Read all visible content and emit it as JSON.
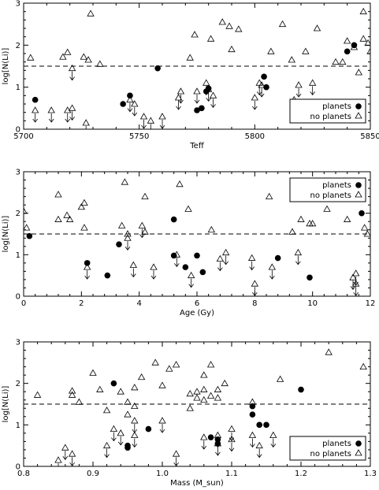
{
  "chart_data": [
    {
      "type": "scatter",
      "xlabel": "Teff",
      "ylabel": "log[N(Li)]",
      "xlim": [
        5700,
        5850
      ],
      "ylim": [
        0,
        3
      ],
      "xticks": [
        "5700",
        "5750",
        "5800",
        "5850"
      ],
      "yticks": [
        "0",
        "1",
        "2",
        "3"
      ],
      "reference_line_y": 1.5,
      "legend": {
        "position": "bottom-right",
        "entries": [
          "planets",
          "no planets"
        ]
      },
      "series": [
        {
          "name": "planets",
          "marker": "filled-circle",
          "points": [
            [
              5705,
              0.7
            ],
            [
              5743,
              0.6
            ],
            [
              5746,
              0.8
            ],
            [
              5758,
              1.45
            ],
            [
              5775,
              0.45
            ],
            [
              5777,
              0.5
            ],
            [
              5779,
              0.9
            ],
            [
              5780,
              0.97
            ],
            [
              5804,
              1.25
            ],
            [
              5805,
              1.0
            ],
            [
              5840,
              1.85
            ],
            [
              5843,
              2.0
            ]
          ]
        },
        {
          "name": "no planets",
          "marker": "open-triangle",
          "points": [
            [
              5703,
              1.7
            ],
            [
              5705,
              0.45
            ],
            [
              5712,
              0.45
            ],
            [
              5717,
              1.72
            ],
            [
              5719,
              1.83
            ],
            [
              5719,
              0.45
            ],
            [
              5721,
              1.45
            ],
            [
              5721,
              0.5
            ],
            [
              5726,
              1.72
            ],
            [
              5727,
              0.15
            ],
            [
              5728,
              1.65
            ],
            [
              5729,
              2.75
            ],
            [
              5733,
              1.55
            ],
            [
              5746,
              0.7
            ],
            [
              5748,
              0.6
            ],
            [
              5752,
              0.3
            ],
            [
              5755,
              0.2
            ],
            [
              5760,
              0.3
            ],
            [
              5767,
              0.75
            ],
            [
              5768,
              0.9
            ],
            [
              5772,
              1.7
            ],
            [
              5774,
              2.25
            ],
            [
              5775,
              0.9
            ],
            [
              5779,
              1.1
            ],
            [
              5780,
              0.95
            ],
            [
              5781,
              2.15
            ],
            [
              5782,
              0.8
            ],
            [
              5786,
              2.55
            ],
            [
              5789,
              2.45
            ],
            [
              5790,
              1.9
            ],
            [
              5793,
              2.38
            ],
            [
              5800,
              0.75
            ],
            [
              5802,
              1.1
            ],
            [
              5803,
              1.05
            ],
            [
              5807,
              1.85
            ],
            [
              5812,
              2.5
            ],
            [
              5816,
              1.65
            ],
            [
              5817,
              0.7
            ],
            [
              5819,
              1.05
            ],
            [
              5822,
              1.85
            ],
            [
              5825,
              1.1
            ],
            [
              5827,
              2.4
            ],
            [
              5835,
              1.6
            ],
            [
              5838,
              1.6
            ],
            [
              5840,
              2.1
            ],
            [
              5843,
              1.95
            ],
            [
              5845,
              1.35
            ],
            [
              5847,
              2.15
            ],
            [
              5847,
              2.8
            ],
            [
              5849,
              2.05
            ],
            [
              5850,
              1.85
            ]
          ],
          "upper_limits": [
            [
              5705,
              0.45
            ],
            [
              5712,
              0.45
            ],
            [
              5719,
              0.45
            ],
            [
              5721,
              1.45
            ],
            [
              5721,
              0.5
            ],
            [
              5727,
              0.15
            ],
            [
              5746,
              0.7
            ],
            [
              5748,
              0.6
            ],
            [
              5752,
              0.3
            ],
            [
              5755,
              0.2
            ],
            [
              5760,
              0.3
            ],
            [
              5767,
              0.75
            ],
            [
              5768,
              0.9
            ],
            [
              5775,
              0.9
            ],
            [
              5779,
              1.1
            ],
            [
              5780,
              0.95
            ],
            [
              5782,
              0.8
            ],
            [
              5800,
              0.75
            ],
            [
              5802,
              1.1
            ],
            [
              5803,
              1.05
            ],
            [
              5817,
              0.7
            ],
            [
              5819,
              1.05
            ],
            [
              5825,
              1.1
            ]
          ]
        }
      ]
    },
    {
      "type": "scatter",
      "xlabel": "Age (Gy)",
      "ylabel": "log[N(Li)]",
      "xlim": [
        0,
        12
      ],
      "ylim": [
        0,
        3
      ],
      "xticks": [
        "0",
        "2",
        "4",
        "6",
        "8",
        "10",
        "12"
      ],
      "yticks": [
        "0",
        "1",
        "2",
        "3"
      ],
      "reference_line_y": 1.5,
      "legend": {
        "position": "top-right",
        "entries": [
          "planets",
          "no planets"
        ]
      },
      "series": [
        {
          "name": "planets",
          "marker": "filled-circle",
          "points": [
            [
              0.2,
              1.45
            ],
            [
              2.2,
              0.8
            ],
            [
              2.9,
              0.5
            ],
            [
              3.3,
              1.25
            ],
            [
              5.2,
              1.85
            ],
            [
              5.2,
              0.98
            ],
            [
              5.6,
              0.7
            ],
            [
              6.0,
              0.98
            ],
            [
              6.2,
              0.58
            ],
            [
              8.8,
              0.92
            ],
            [
              9.9,
              0.45
            ],
            [
              11.7,
              2.0
            ]
          ]
        },
        {
          "name": "no planets",
          "marker": "open-triangle",
          "points": [
            [
              0.0,
              2.05
            ],
            [
              0.1,
              1.65
            ],
            [
              1.2,
              2.45
            ],
            [
              1.2,
              1.85
            ],
            [
              1.5,
              1.95
            ],
            [
              1.6,
              1.85
            ],
            [
              2.0,
              2.15
            ],
            [
              2.1,
              1.65
            ],
            [
              2.1,
              2.25
            ],
            [
              2.2,
              0.7
            ],
            [
              3.4,
              1.7
            ],
            [
              3.5,
              2.75
            ],
            [
              3.6,
              1.4
            ],
            [
              3.6,
              1.5
            ],
            [
              3.8,
              0.75
            ],
            [
              4.1,
              1.7
            ],
            [
              4.2,
              1.55
            ],
            [
              4.2,
              2.4
            ],
            [
              4.5,
              0.7
            ],
            [
              5.3,
              1.0
            ],
            [
              5.4,
              2.7
            ],
            [
              5.7,
              2.1
            ],
            [
              5.8,
              0.5
            ],
            [
              6.5,
              1.6
            ],
            [
              6.8,
              0.9
            ],
            [
              7.0,
              1.05
            ],
            [
              7.9,
              0.92
            ],
            [
              8.0,
              0.3
            ],
            [
              8.5,
              2.4
            ],
            [
              8.6,
              0.7
            ],
            [
              9.3,
              1.55
            ],
            [
              9.5,
              1.05
            ],
            [
              9.6,
              1.85
            ],
            [
              9.8,
              2.45
            ],
            [
              9.9,
              1.75
            ],
            [
              10.0,
              1.75
            ],
            [
              10.5,
              2.1
            ],
            [
              11.2,
              1.85
            ],
            [
              11.4,
              0.45
            ],
            [
              11.5,
              0.55
            ],
            [
              11.5,
              0.3
            ],
            [
              11.8,
              1.65
            ],
            [
              11.9,
              1.5
            ]
          ],
          "upper_limits": [
            [
              2.2,
              0.7
            ],
            [
              3.6,
              1.4
            ],
            [
              3.8,
              0.75
            ],
            [
              4.1,
              1.7
            ],
            [
              4.5,
              0.7
            ],
            [
              5.3,
              1.0
            ],
            [
              5.8,
              0.5
            ],
            [
              6.8,
              0.9
            ],
            [
              7.0,
              1.05
            ],
            [
              7.9,
              0.92
            ],
            [
              8.0,
              0.3
            ],
            [
              8.6,
              0.7
            ],
            [
              9.5,
              1.05
            ],
            [
              11.4,
              0.45
            ],
            [
              11.5,
              0.55
            ],
            [
              11.5,
              0.3
            ]
          ]
        }
      ]
    },
    {
      "type": "scatter",
      "xlabel": "Mass (M_sun)",
      "ylabel": "log[N(Li)]",
      "xlim": [
        0.8,
        1.3
      ],
      "ylim": [
        0,
        3
      ],
      "xticks": [
        "0.8",
        "0.9",
        "1.0",
        "1.1",
        "1.2",
        "1.3"
      ],
      "yticks": [
        "0",
        "1",
        "2",
        "3"
      ],
      "reference_line_y": 1.5,
      "legend": {
        "position": "bottom-right",
        "entries": [
          "planets",
          "no planets"
        ]
      },
      "series": [
        {
          "name": "planets",
          "marker": "filled-circle",
          "points": [
            [
              0.93,
              2.0
            ],
            [
              0.95,
              0.5
            ],
            [
              0.95,
              0.45
            ],
            [
              0.98,
              0.9
            ],
            [
              1.07,
              0.7
            ],
            [
              1.08,
              0.65
            ],
            [
              1.08,
              0.55
            ],
            [
              1.13,
              1.45
            ],
            [
              1.13,
              1.25
            ],
            [
              1.14,
              1.0
            ],
            [
              1.15,
              1.0
            ],
            [
              1.2,
              1.85
            ]
          ]
        },
        {
          "name": "no planets",
          "marker": "open-triangle",
          "points": [
            [
              0.82,
              1.72
            ],
            [
              0.85,
              0.15
            ],
            [
              0.86,
              0.45
            ],
            [
              0.87,
              1.82
            ],
            [
              0.87,
              1.72
            ],
            [
              0.87,
              0.3
            ],
            [
              0.88,
              1.55
            ],
            [
              0.9,
              2.25
            ],
            [
              0.91,
              1.85
            ],
            [
              0.92,
              0.5
            ],
            [
              0.92,
              1.35
            ],
            [
              0.93,
              0.9
            ],
            [
              0.94,
              0.8
            ],
            [
              0.94,
              1.8
            ],
            [
              0.95,
              1.25
            ],
            [
              0.95,
              1.55
            ],
            [
              0.96,
              1.45
            ],
            [
              0.96,
              0.75
            ],
            [
              0.96,
              1.1
            ],
            [
              0.96,
              1.9
            ],
            [
              0.97,
              2.15
            ],
            [
              0.99,
              2.5
            ],
            [
              1.0,
              1.1
            ],
            [
              1.0,
              1.95
            ],
            [
              1.01,
              2.35
            ],
            [
              1.02,
              2.45
            ],
            [
              1.02,
              0.3
            ],
            [
              1.04,
              1.4
            ],
            [
              1.04,
              1.75
            ],
            [
              1.05,
              1.8
            ],
            [
              1.05,
              1.65
            ],
            [
              1.06,
              0.7
            ],
            [
              1.06,
              1.6
            ],
            [
              1.06,
              2.2
            ],
            [
              1.06,
              1.85
            ],
            [
              1.07,
              1.7
            ],
            [
              1.07,
              2.45
            ],
            [
              1.08,
              0.75
            ],
            [
              1.08,
              1.85
            ],
            [
              1.08,
              0.55
            ],
            [
              1.08,
              1.65
            ],
            [
              1.09,
              2.0
            ],
            [
              1.1,
              0.9
            ],
            [
              1.1,
              0.65
            ],
            [
              1.13,
              1.55
            ],
            [
              1.13,
              0.75
            ],
            [
              1.14,
              0.5
            ],
            [
              1.16,
              0.75
            ],
            [
              1.17,
              2.1
            ],
            [
              1.24,
              2.75
            ],
            [
              1.29,
              2.4
            ]
          ],
          "upper_limits": [
            [
              0.85,
              0.15
            ],
            [
              0.86,
              0.45
            ],
            [
              0.87,
              0.3
            ],
            [
              0.92,
              0.5
            ],
            [
              0.93,
              0.9
            ],
            [
              0.94,
              0.8
            ],
            [
              0.96,
              0.75
            ],
            [
              0.96,
              1.1
            ],
            [
              1.0,
              1.1
            ],
            [
              1.02,
              0.3
            ],
            [
              1.06,
              0.7
            ],
            [
              1.08,
              0.75
            ],
            [
              1.08,
              0.55
            ],
            [
              1.1,
              0.9
            ],
            [
              1.1,
              0.65
            ],
            [
              1.13,
              0.75
            ],
            [
              1.14,
              0.5
            ],
            [
              1.16,
              0.75
            ]
          ]
        }
      ]
    }
  ]
}
